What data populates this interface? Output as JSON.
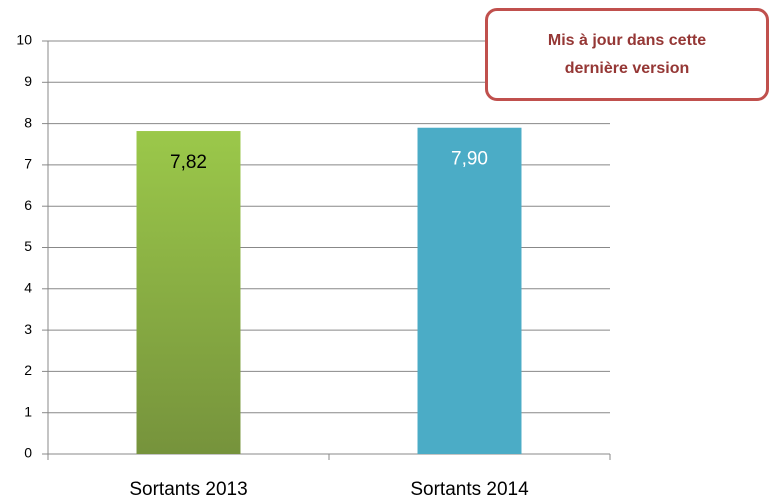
{
  "chart_data": {
    "type": "bar",
    "categories": [
      "Sortants 2013",
      "Sortants 2014"
    ],
    "values": [
      7.82,
      7.9
    ],
    "value_labels": [
      "7,82",
      "7,90"
    ],
    "colors": [
      "#8db543",
      "#4bacc6"
    ],
    "value_label_colors": [
      "#000000",
      "#ffffff"
    ],
    "ylim": [
      0,
      10
    ],
    "yticks": [
      0,
      1,
      2,
      3,
      4,
      5,
      6,
      7,
      8,
      9,
      10
    ],
    "grid": true,
    "annotation": "Mis à jour dans cette dernière version"
  }
}
